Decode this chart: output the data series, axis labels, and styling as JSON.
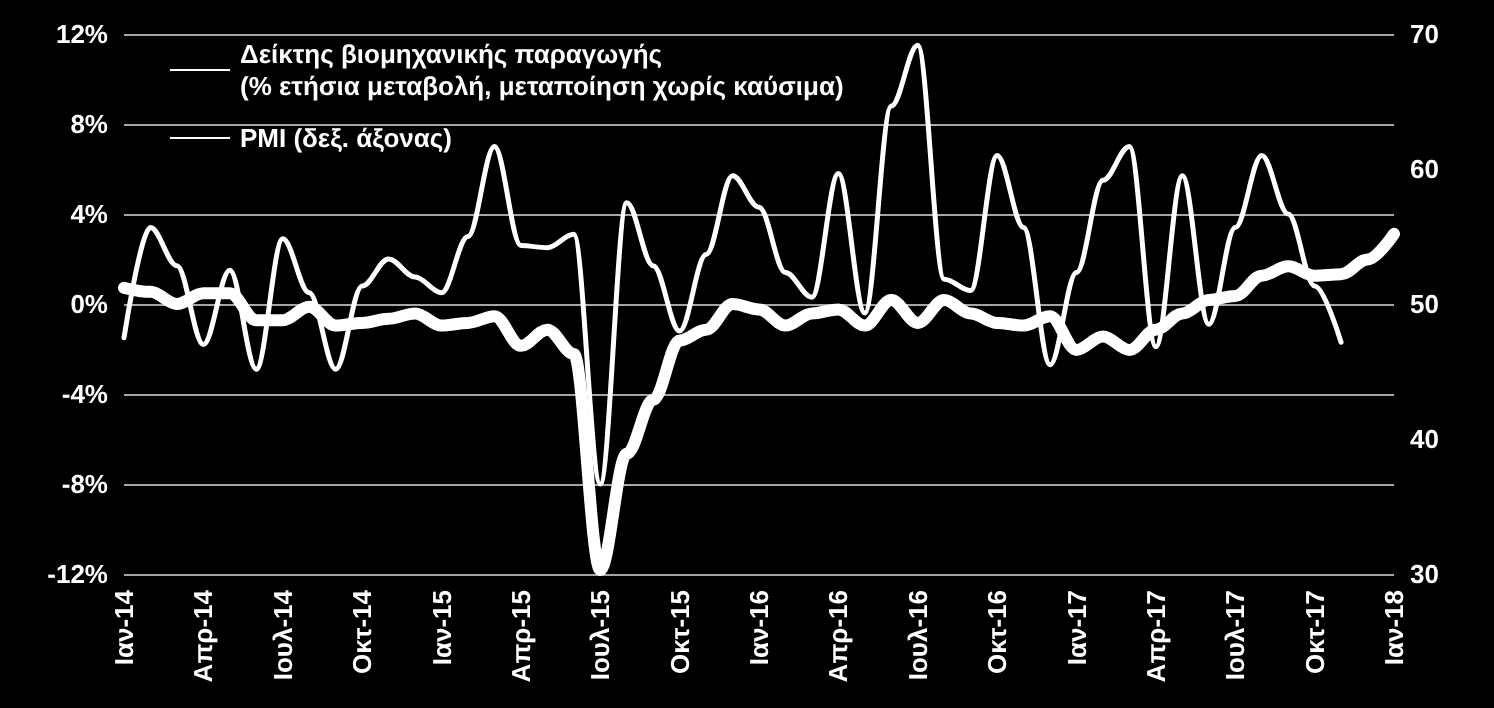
{
  "chart_data": {
    "type": "line",
    "categories": [
      "Ιαν-14",
      null,
      null,
      "Απρ-14",
      null,
      null,
      "Ιουλ-14",
      null,
      null,
      "Οκτ-14",
      null,
      null,
      "Ιαν-15",
      null,
      null,
      "Απρ-15",
      null,
      null,
      "Ιουλ-15",
      null,
      null,
      "Οκτ-15",
      null,
      null,
      "Ιαν-16",
      null,
      null,
      "Απρ-16",
      null,
      null,
      "Ιουλ-16",
      null,
      null,
      "Οκτ-16",
      null,
      null,
      "Ιαν-17",
      null,
      null,
      "Απρ-17",
      null,
      null,
      "Ιουλ-17",
      null,
      null,
      "Οκτ-17",
      null,
      null,
      "Ιαν-18"
    ],
    "series": [
      {
        "name": "Δείκτης βιομηχανικής παραγωγής\n(% ετήσια μεταβολή, μεταποίηση χωρίς καύσιμα)",
        "color": "#ffffff",
        "values": [
          -1.5,
          3.4,
          1.7,
          -1.8,
          1.5,
          -2.9,
          2.9,
          0.5,
          -2.9,
          0.8,
          2.0,
          1.2,
          0.5,
          3.0,
          7.0,
          2.6,
          2.5,
          3.1,
          -8.0,
          4.5,
          1.7,
          -1.2,
          2.2,
          5.7,
          4.3,
          1.4,
          0.3,
          5.8,
          -0.4,
          8.8,
          11.5,
          1.1,
          0.6,
          6.6,
          3.4,
          -2.7,
          1.4,
          5.5,
          7.0,
          -1.9,
          5.7,
          -0.9,
          3.4,
          6.6,
          4.0,
          0.8,
          -1.7,
          null,
          null
        ]
      },
      {
        "name": "PMI (δεξ. άξονας)",
        "color": "#ffffff",
        "axis": "y2",
        "values": [
          51.2,
          50.9,
          50.0,
          50.8,
          50.8,
          48.8,
          48.8,
          49.8,
          48.4,
          48.6,
          48.9,
          49.3,
          48.4,
          48.6,
          49.1,
          46.9,
          48.1,
          46.3,
          30.3,
          38.9,
          42.9,
          47.3,
          48.1,
          50.0,
          49.6,
          48.4,
          49.3,
          49.6,
          48.4,
          50.3,
          48.6,
          50.3,
          49.3,
          48.6,
          48.4,
          49.1,
          46.6,
          47.6,
          46.6,
          48.1,
          49.3,
          50.3,
          50.6,
          52.1,
          52.8,
          52.1,
          52.2,
          53.3,
          55.2
        ]
      }
    ],
    "ylim": [
      -12,
      12
    ],
    "yticks": [
      {
        "value": -12,
        "label": "-12%"
      },
      {
        "value": -8,
        "label": "-8%"
      },
      {
        "value": -4,
        "label": "-4%"
      },
      {
        "value": 0,
        "label": "0%"
      },
      {
        "value": 4,
        "label": "4%"
      },
      {
        "value": 8,
        "label": "8%"
      },
      {
        "value": 12,
        "label": "12%"
      }
    ],
    "y2lim": [
      30,
      70
    ],
    "y2ticks": [
      30,
      40,
      50,
      60,
      70
    ],
    "grid": "y",
    "legend": "top left",
    "marker": "none"
  }
}
